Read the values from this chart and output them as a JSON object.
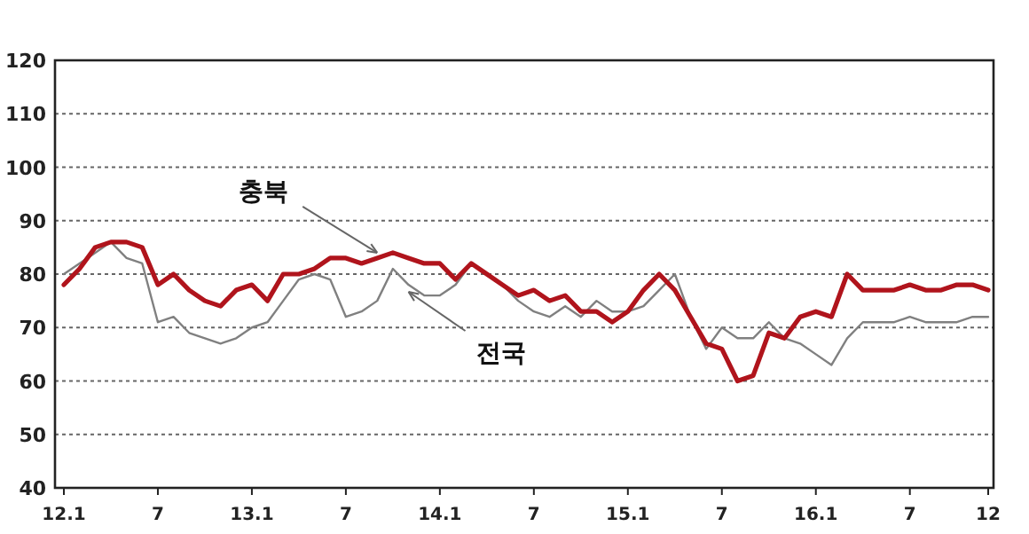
{
  "chart_data": {
    "type": "line",
    "categories": [
      "12.1",
      null,
      null,
      null,
      null,
      null,
      "7",
      null,
      null,
      null,
      null,
      null,
      "13.1",
      null,
      null,
      null,
      null,
      null,
      "7",
      null,
      null,
      null,
      null,
      null,
      "14.1",
      null,
      null,
      null,
      null,
      null,
      "7",
      null,
      null,
      null,
      null,
      null,
      "15.1",
      null,
      null,
      null,
      null,
      null,
      "7",
      null,
      null,
      null,
      null,
      null,
      "16.1",
      null,
      null,
      null,
      null,
      null,
      "7",
      null,
      null,
      null,
      null,
      "12"
    ],
    "series": [
      {
        "name": "전국",
        "color": "#808080",
        "values": [
          80,
          82,
          84,
          86,
          83,
          82,
          71,
          72,
          69,
          68,
          67,
          68,
          70,
          71,
          75,
          79,
          80,
          79,
          72,
          73,
          75,
          81,
          78,
          76,
          76,
          78,
          82,
          80,
          78,
          75,
          73,
          72,
          74,
          72,
          75,
          73,
          73,
          74,
          77,
          80,
          72,
          66,
          70,
          68,
          68,
          71,
          68,
          67,
          65,
          63,
          68,
          71,
          71,
          71,
          72,
          71,
          71,
          71,
          72,
          72
        ]
      },
      {
        "name": "충북",
        "color": "#b0141c",
        "values": [
          78,
          81,
          85,
          86,
          86,
          85,
          78,
          80,
          77,
          75,
          74,
          77,
          78,
          75,
          80,
          80,
          81,
          83,
          83,
          82,
          83,
          84,
          83,
          82,
          82,
          79,
          82,
          80,
          78,
          76,
          77,
          75,
          76,
          73,
          73,
          71,
          73,
          77,
          80,
          77,
          72,
          67,
          66,
          60,
          61,
          69,
          68,
          72,
          73,
          72,
          80,
          77,
          77,
          77,
          78,
          77,
          77,
          78,
          78,
          77
        ]
      }
    ],
    "ylim": [
      40,
      120
    ],
    "yticks": [
      40,
      50,
      60,
      70,
      80,
      90,
      100,
      110,
      120
    ],
    "grid": "y",
    "marker": "none",
    "line_style": "solid"
  }
}
